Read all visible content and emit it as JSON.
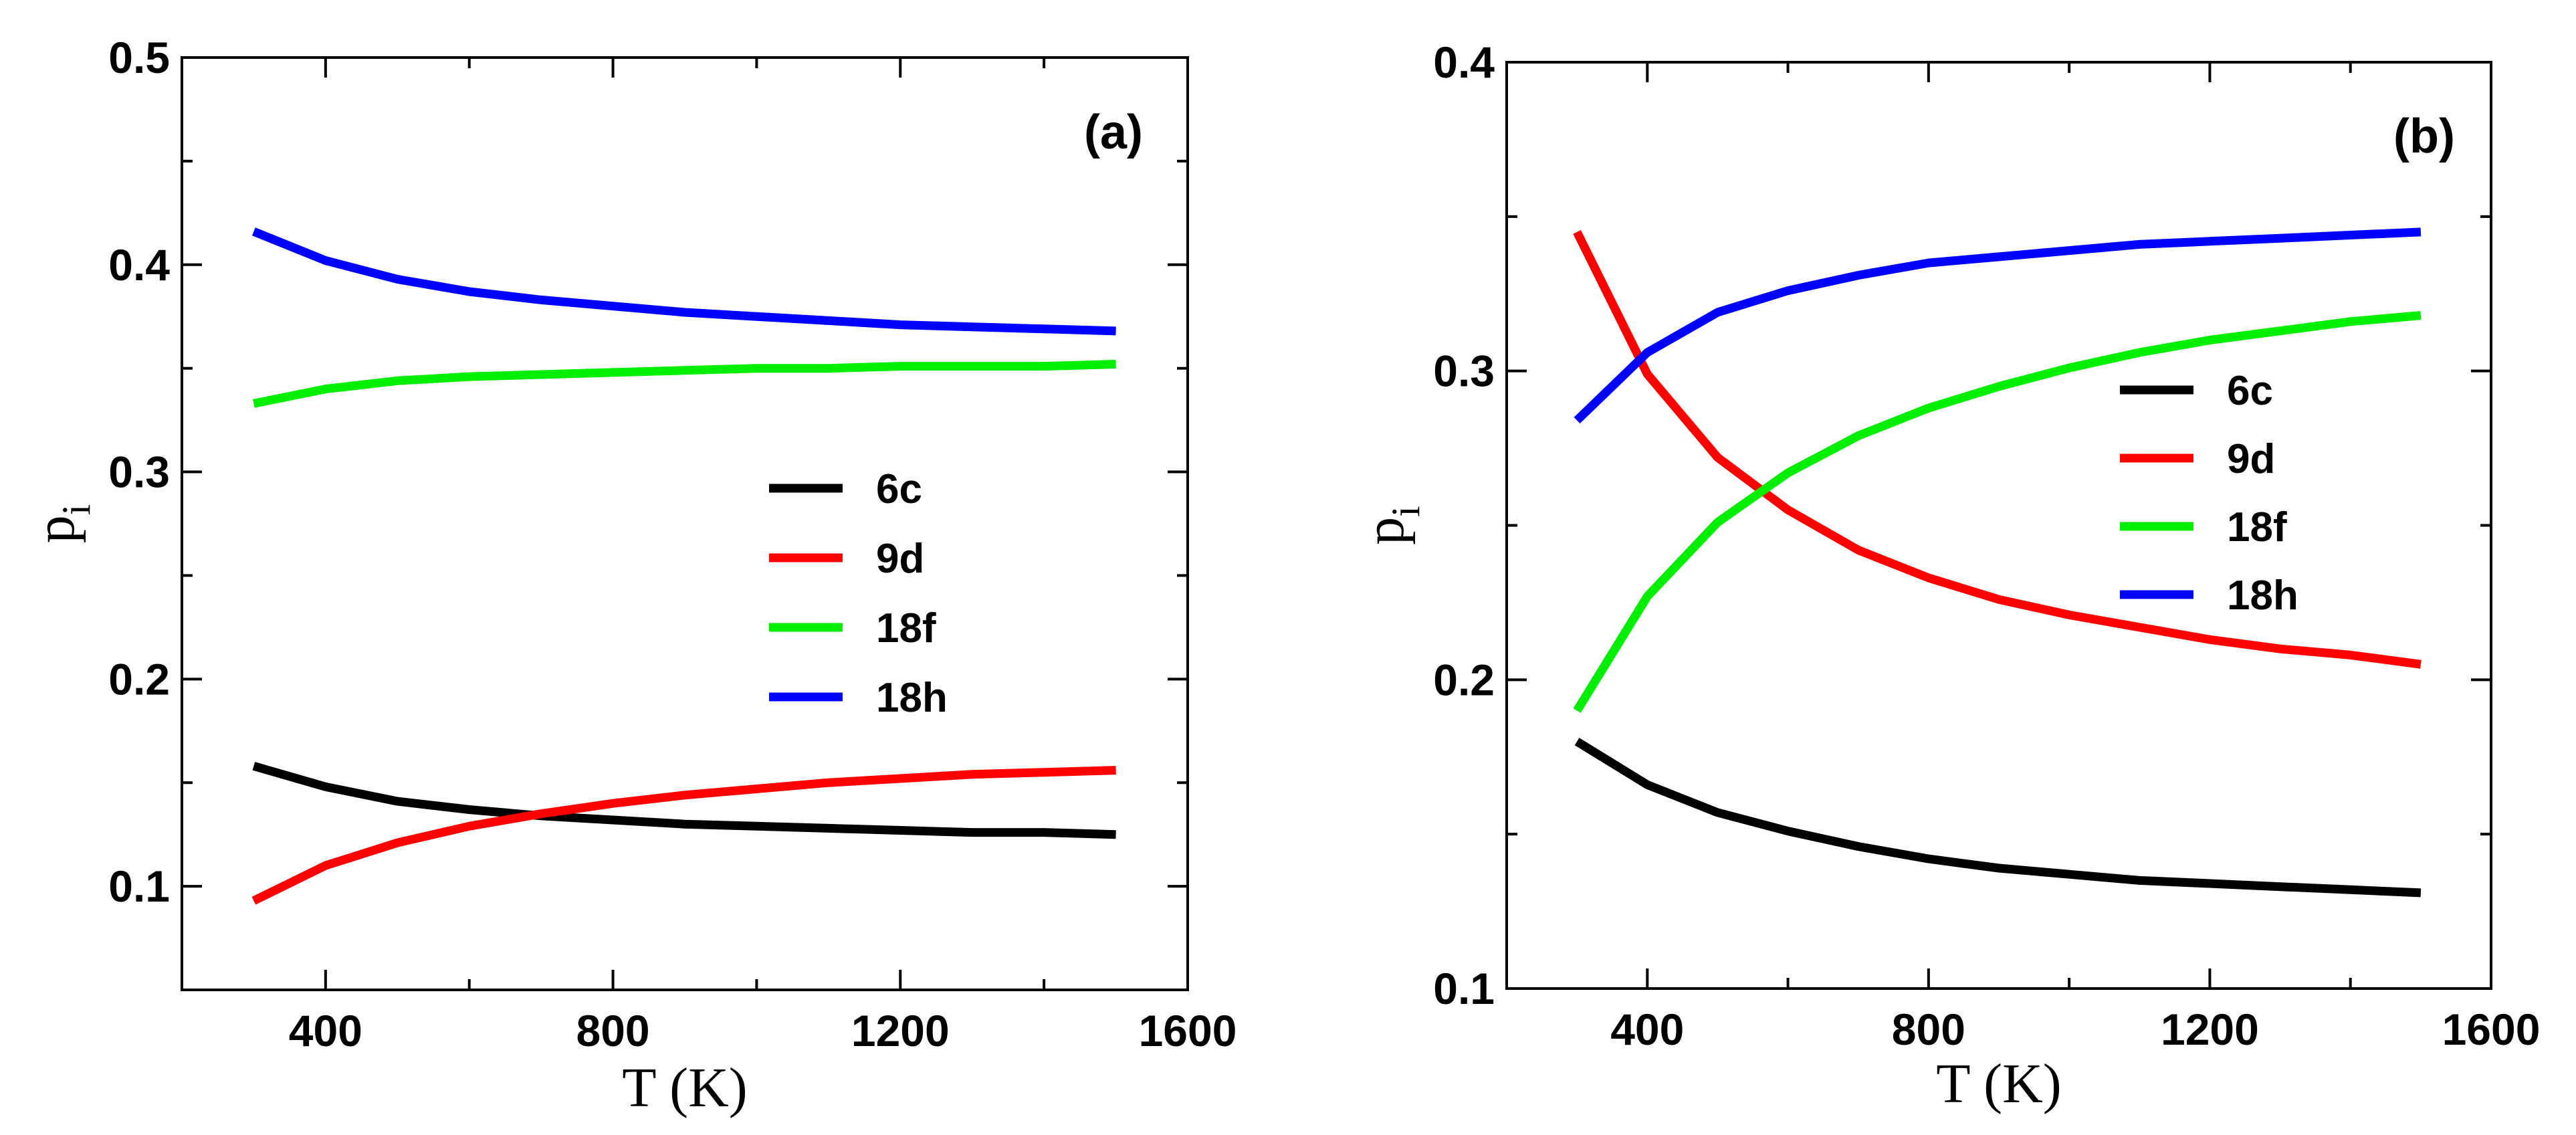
{
  "chart_data": [
    {
      "type": "line",
      "panel_label": "(a)",
      "title": "",
      "xlabel": "T (K)",
      "ylabel": "p",
      "ylabel_sub": "i",
      "xlim": [
        200,
        1600
      ],
      "ylim": [
        0.05,
        0.5
      ],
      "xticks": [
        400,
        800,
        1200,
        1600
      ],
      "xtick_labels": [
        "400",
        "800",
        "1200",
        "1600"
      ],
      "yticks": [
        0.1,
        0.2,
        0.3,
        0.4,
        0.5
      ],
      "ytick_labels": [
        "0.1",
        "0.2",
        "0.3",
        "0.4",
        "0.5"
      ],
      "legend_position": "center-right",
      "x": [
        300,
        400,
        500,
        600,
        700,
        800,
        900,
        1000,
        1100,
        1200,
        1300,
        1400,
        1500
      ],
      "series": [
        {
          "name": "6c",
          "color": "#000000",
          "values": [
            0.158,
            0.148,
            0.141,
            0.137,
            0.134,
            0.132,
            0.13,
            0.129,
            0.128,
            0.127,
            0.126,
            0.126,
            0.125
          ]
        },
        {
          "name": "9d",
          "color": "#ff0000",
          "values": [
            0.093,
            0.11,
            0.121,
            0.129,
            0.135,
            0.14,
            0.144,
            0.147,
            0.15,
            0.152,
            0.154,
            0.155,
            0.156
          ]
        },
        {
          "name": "18f",
          "color": "#00ee00",
          "values": [
            0.333,
            0.34,
            0.344,
            0.346,
            0.347,
            0.348,
            0.349,
            0.35,
            0.35,
            0.351,
            0.351,
            0.351,
            0.352
          ]
        },
        {
          "name": "18h",
          "color": "#0000ff",
          "values": [
            0.416,
            0.402,
            0.393,
            0.387,
            0.383,
            0.38,
            0.377,
            0.375,
            0.373,
            0.371,
            0.37,
            0.369,
            0.368
          ]
        }
      ]
    },
    {
      "type": "line",
      "panel_label": "(b)",
      "title": "",
      "xlabel": "T (K)",
      "ylabel": "p",
      "ylabel_sub": "i",
      "xlim": [
        200,
        1600
      ],
      "ylim": [
        0.1,
        0.4
      ],
      "xticks": [
        400,
        800,
        1200,
        1600
      ],
      "xtick_labels": [
        "400",
        "800",
        "1200",
        "1600"
      ],
      "yticks": [
        0.1,
        0.2,
        0.3,
        0.4
      ],
      "ytick_labels": [
        "0.1",
        "0.2",
        "0.3",
        "0.4"
      ],
      "legend_position": "center-right",
      "x": [
        300,
        400,
        500,
        600,
        700,
        800,
        900,
        1000,
        1100,
        1200,
        1300,
        1400,
        1500
      ],
      "series": [
        {
          "name": "6c",
          "color": "#000000",
          "values": [
            0.18,
            0.166,
            0.157,
            0.151,
            0.146,
            0.142,
            0.139,
            0.137,
            0.135,
            0.134,
            0.133,
            0.132,
            0.131
          ]
        },
        {
          "name": "9d",
          "color": "#ff0000",
          "values": [
            0.345,
            0.299,
            0.272,
            0.255,
            0.242,
            0.233,
            0.226,
            0.221,
            0.217,
            0.213,
            0.21,
            0.208,
            0.205
          ]
        },
        {
          "name": "18f",
          "color": "#00ee00",
          "values": [
            0.19,
            0.227,
            0.251,
            0.267,
            0.279,
            0.288,
            0.295,
            0.301,
            0.306,
            0.31,
            0.313,
            0.316,
            0.318
          ]
        },
        {
          "name": "18h",
          "color": "#0000ff",
          "values": [
            0.284,
            0.306,
            0.319,
            0.326,
            0.331,
            0.335,
            0.337,
            0.339,
            0.341,
            0.342,
            0.343,
            0.344,
            0.345
          ]
        }
      ]
    }
  ]
}
